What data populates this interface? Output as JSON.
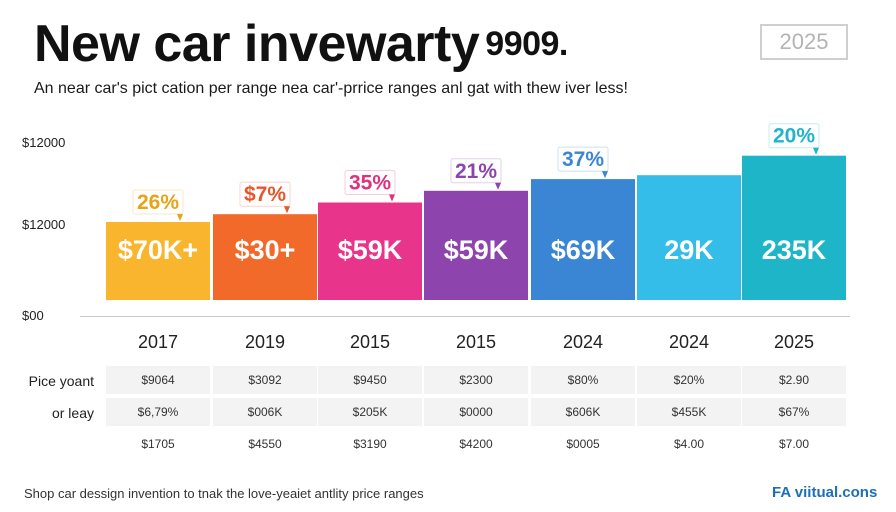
{
  "header": {
    "title": "New car invewarty",
    "title_year": "9909.",
    "year_box": "2025",
    "subtitle": "An near car's pict cation per range nea car'-prrice ranges anl gat with thew iver less!"
  },
  "chart_data": {
    "type": "bar",
    "y_ticks": [
      "$12000",
      "$12000",
      "$00"
    ],
    "categories": [
      "2017",
      "2019",
      "2015",
      "2015",
      "2024",
      "2024",
      "2025"
    ],
    "values": [
      100,
      110,
      125,
      140,
      155,
      160,
      185
    ],
    "bar_labels": [
      "$70K+",
      "$30+",
      "$59K",
      "$59K",
      "$69K",
      "29K",
      "235K"
    ],
    "percent_labels": [
      "26%",
      "$7%",
      "35%",
      "21%",
      "37%",
      "",
      "20%"
    ],
    "colors": [
      "#f9b52d",
      "#f26a2a",
      "#e8348a",
      "#8e44ad",
      "#3a86d4",
      "#33bde8",
      "#1fb5c9"
    ],
    "percent_colors": [
      "#e8a316",
      "#e8552a",
      "#e0307e",
      "#8e44ad",
      "#3a86d4",
      "#33bde8",
      "#1fb5c9"
    ]
  },
  "table": {
    "row_labels": [
      "Pice yoant",
      "or leay",
      ""
    ],
    "rows": [
      [
        "$9064",
        "$3092",
        "$9450",
        "$2300",
        "$80%",
        "$20%",
        "$2.90"
      ],
      [
        "$6,79%",
        "$006K",
        "$205K",
        "$0000",
        "$606K",
        "$455K",
        "$67%"
      ],
      [
        "$1705",
        "$4550",
        "$3190",
        "$4200",
        "$0005",
        "$4.00",
        "$7.00"
      ]
    ]
  },
  "footer": {
    "text": "Shop car dessign invention to tnak the love-yeaiet antlity price ranges",
    "brand": "FA viitual.cons"
  }
}
